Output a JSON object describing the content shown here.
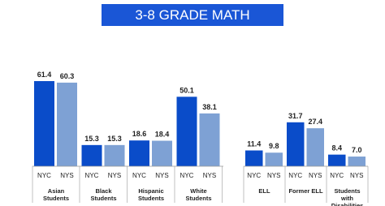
{
  "chart_data": {
    "type": "bar",
    "title": "3-8 GRADE MATH",
    "categories": [
      "Asian Students",
      "Black Students",
      "Hispanic Students",
      "White Students",
      "ELL",
      "Former ELL",
      "Students with Disabilities"
    ],
    "series": [
      {
        "name": "NYC",
        "color": "#0a4cc9",
        "values": [
          61.4,
          15.3,
          18.6,
          50.1,
          11.4,
          31.7,
          8.4
        ]
      },
      {
        "name": "NYS",
        "color": "#7ea1d4",
        "values": [
          60.3,
          15.3,
          18.4,
          38.1,
          9.8,
          27.4,
          7.0
        ],
        "value_labels": [
          "60.3",
          "15.3",
          "18.4",
          "38.1",
          "9.8",
          "27.4",
          "7.0"
        ]
      }
    ]
  }
}
